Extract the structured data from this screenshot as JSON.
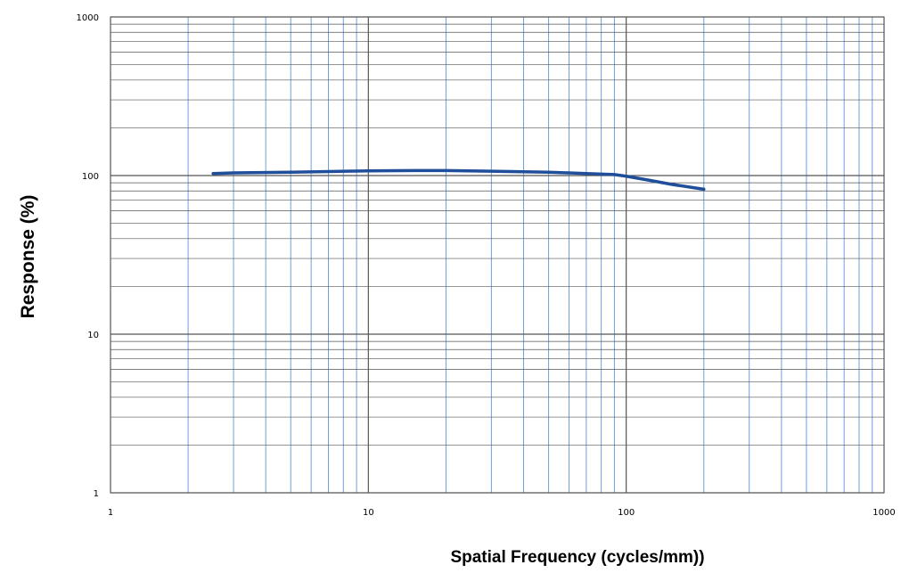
{
  "chart_data": {
    "type": "line",
    "title": "",
    "xlabel": "Spatial Frequency (cycles/mm))",
    "ylabel": "Response (%)",
    "x_scale": "log",
    "y_scale": "log",
    "xlim": [
      1,
      1000
    ],
    "ylim": [
      1,
      1000
    ],
    "x_ticks": [
      "1",
      "10",
      "100",
      "1000"
    ],
    "y_ticks": [
      "1",
      "10",
      "100",
      "1000"
    ],
    "grid": true,
    "legend": "none",
    "series": [
      {
        "color": "#1f4e9a",
        "x": [
          2.5,
          3,
          5,
          7,
          10,
          15,
          20,
          30,
          50,
          70,
          90,
          100,
          120,
          150,
          200
        ],
        "y": [
          103,
          104,
          105,
          106,
          107,
          107.5,
          107.5,
          106.5,
          105,
          103,
          101.5,
          99,
          94,
          88,
          82
        ]
      }
    ],
    "colors": {
      "minor_vertical_grid": "#6fa0dc",
      "major_grid": "#555555",
      "minor_horizontal_grid": "#555555",
      "line": "#1f4e9a"
    }
  }
}
